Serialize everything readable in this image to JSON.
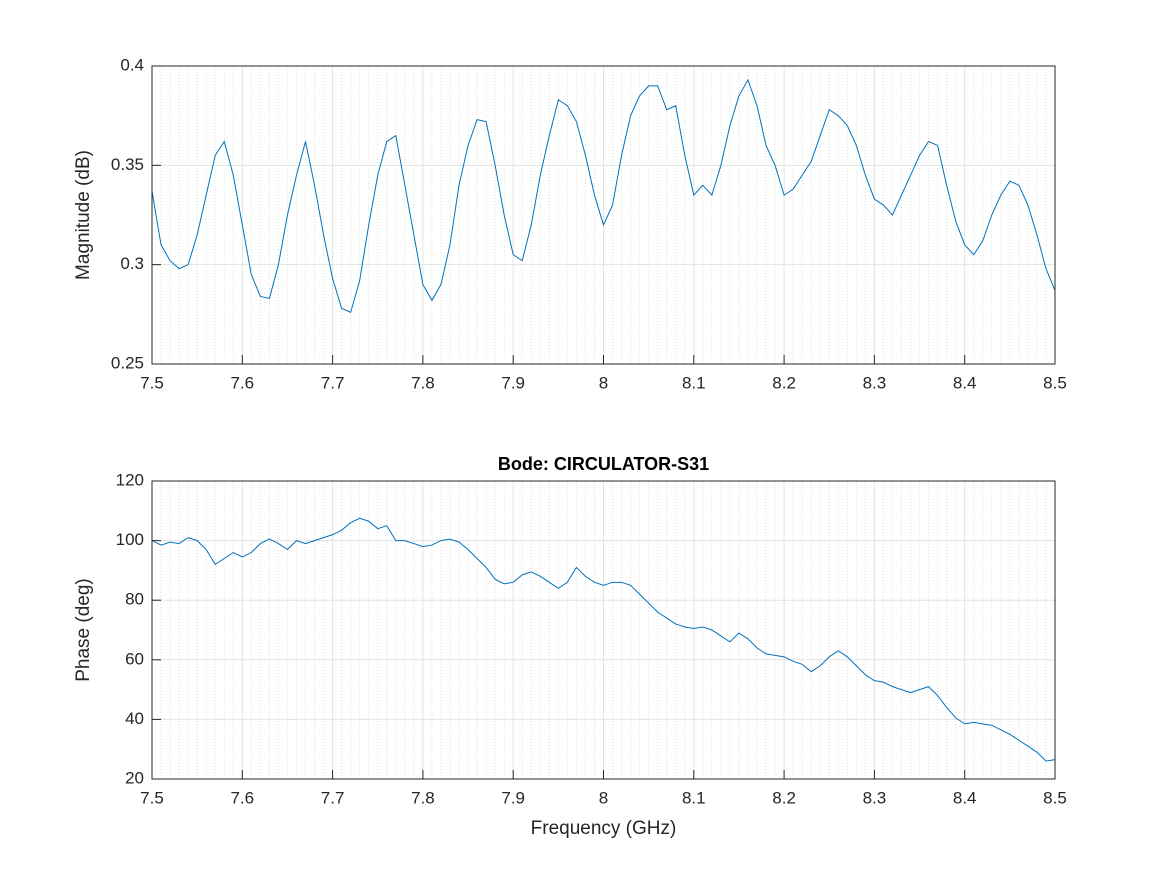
{
  "chart_data": [
    {
      "type": "line",
      "ylabel": "Magnitude (dB)",
      "x": [
        7.5,
        7.51,
        7.52,
        7.53,
        7.54,
        7.55,
        7.56,
        7.57,
        7.58,
        7.59,
        7.6,
        7.61,
        7.62,
        7.63,
        7.64,
        7.65,
        7.66,
        7.67,
        7.68,
        7.69,
        7.7,
        7.71,
        7.72,
        7.73,
        7.74,
        7.75,
        7.76,
        7.77,
        7.78,
        7.79,
        7.8,
        7.81,
        7.82,
        7.83,
        7.84,
        7.85,
        7.86,
        7.87,
        7.88,
        7.89,
        7.9,
        7.91,
        7.92,
        7.93,
        7.94,
        7.95,
        7.96,
        7.97,
        7.98,
        7.99,
        8,
        8.01,
        8.02,
        8.03,
        8.04,
        8.05,
        8.06,
        8.07,
        8.08,
        8.09,
        8.1,
        8.11,
        8.12,
        8.13,
        8.14,
        8.15,
        8.16,
        8.17,
        8.18,
        8.19,
        8.2,
        8.21,
        8.22,
        8.23,
        8.24,
        8.25,
        8.26,
        8.27,
        8.28,
        8.29,
        8.3,
        8.31,
        8.32,
        8.33,
        8.34,
        8.35,
        8.36,
        8.37,
        8.38,
        8.39,
        8.4,
        8.41,
        8.42,
        8.43,
        8.44,
        8.45,
        8.46,
        8.47,
        8.48,
        8.49,
        8.5
      ],
      "series": [
        {
          "color": "#0072bd",
          "values": [
            0.337,
            0.31,
            0.302,
            0.298,
            0.3,
            0.315,
            0.335,
            0.355,
            0.362,
            0.345,
            0.32,
            0.295,
            0.284,
            0.283,
            0.3,
            0.325,
            0.345,
            0.362,
            0.34,
            0.315,
            0.293,
            0.278,
            0.276,
            0.292,
            0.32,
            0.345,
            0.362,
            0.365,
            0.34,
            0.315,
            0.29,
            0.282,
            0.29,
            0.31,
            0.34,
            0.36,
            0.373,
            0.372,
            0.35,
            0.325,
            0.305,
            0.302,
            0.32,
            0.345,
            0.365,
            0.383,
            0.38,
            0.372,
            0.355,
            0.335,
            0.32,
            0.33,
            0.355,
            0.375,
            0.385,
            0.39,
            0.39,
            0.378,
            0.38,
            0.355,
            0.335,
            0.34,
            0.335,
            0.35,
            0.37,
            0.385,
            0.393,
            0.38,
            0.36,
            0.35,
            0.335,
            0.338,
            0.345,
            0.352,
            0.365,
            0.378,
            0.375,
            0.37,
            0.36,
            0.345,
            0.333,
            0.33,
            0.325,
            0.335,
            0.345,
            0.355,
            0.362,
            0.36,
            0.34,
            0.322,
            0.31,
            0.305,
            0.312,
            0.325,
            0.335,
            0.342,
            0.34,
            0.33,
            0.315,
            0.298,
            0.287
          ]
        }
      ],
      "xlim": [
        7.5,
        8.5
      ],
      "xticks": [
        7.5,
        7.6,
        7.7,
        7.8,
        7.9,
        8,
        8.1,
        8.2,
        8.3,
        8.4,
        8.5
      ],
      "ylim": [
        0.25,
        0.4
      ],
      "yticks": [
        0.25,
        0.3,
        0.35,
        0.4
      ],
      "grid": true,
      "minor_grid": true
    },
    {
      "type": "line",
      "title": "Bode: CIRCULATOR-S31",
      "xlabel": "Frequency (GHz)",
      "ylabel": "Phase (deg)",
      "x": [
        7.5,
        7.51,
        7.52,
        7.53,
        7.54,
        7.55,
        7.56,
        7.57,
        7.58,
        7.59,
        7.6,
        7.61,
        7.62,
        7.63,
        7.64,
        7.65,
        7.66,
        7.67,
        7.68,
        7.69,
        7.7,
        7.71,
        7.72,
        7.73,
        7.74,
        7.75,
        7.76,
        7.77,
        7.78,
        7.79,
        7.8,
        7.81,
        7.82,
        7.83,
        7.84,
        7.85,
        7.86,
        7.87,
        7.88,
        7.89,
        7.9,
        7.91,
        7.92,
        7.93,
        7.94,
        7.95,
        7.96,
        7.97,
        7.98,
        7.99,
        8,
        8.01,
        8.02,
        8.03,
        8.04,
        8.05,
        8.06,
        8.07,
        8.08,
        8.09,
        8.1,
        8.11,
        8.12,
        8.13,
        8.14,
        8.15,
        8.16,
        8.17,
        8.18,
        8.19,
        8.2,
        8.21,
        8.22,
        8.23,
        8.24,
        8.25,
        8.26,
        8.27,
        8.28,
        8.29,
        8.3,
        8.31,
        8.32,
        8.33,
        8.34,
        8.35,
        8.36,
        8.37,
        8.38,
        8.39,
        8.4,
        8.41,
        8.42,
        8.43,
        8.44,
        8.45,
        8.46,
        8.47,
        8.48,
        8.49,
        8.5
      ],
      "series": [
        {
          "color": "#0072bd",
          "values": [
            100,
            98.5,
            99.5,
            99,
            101,
            100,
            97,
            92,
            94,
            96,
            94.5,
            96,
            99,
            100.5,
            99,
            97,
            100,
            99,
            100,
            101,
            102,
            103.5,
            106,
            107.5,
            106.5,
            104,
            105,
            100,
            100,
            99,
            98,
            98.5,
            100,
            100.5,
            99.5,
            97,
            94,
            91,
            87,
            85.5,
            86,
            88.5,
            89.5,
            88,
            86,
            84,
            86,
            91,
            88,
            86,
            85,
            86,
            86,
            85,
            82,
            79,
            76,
            74,
            72,
            71,
            70.5,
            71,
            70,
            68,
            66,
            69,
            67,
            64,
            62,
            61.5,
            61,
            59.5,
            58.5,
            56,
            58,
            61,
            63,
            61,
            58,
            55,
            53,
            52.5,
            51,
            50,
            49,
            50,
            51,
            48,
            44,
            40.5,
            38.5,
            39,
            38.5,
            38,
            36.5,
            35,
            33,
            31,
            29,
            26,
            26.5
          ]
        }
      ],
      "xlim": [
        7.5,
        8.5
      ],
      "xticks": [
        7.5,
        7.6,
        7.7,
        7.8,
        7.9,
        8,
        8.1,
        8.2,
        8.3,
        8.4,
        8.5
      ],
      "ylim": [
        20,
        120
      ],
      "yticks": [
        20,
        40,
        60,
        80,
        100,
        120
      ],
      "grid": true,
      "minor_grid": true
    }
  ]
}
